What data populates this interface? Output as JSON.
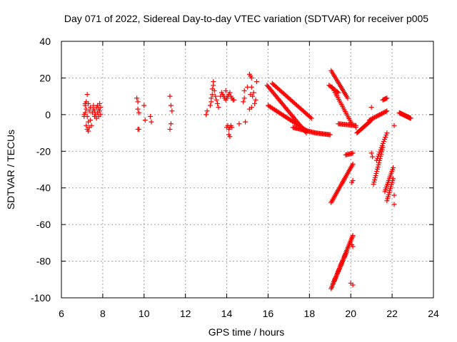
{
  "chart_data": {
    "type": "scatter",
    "title": "Day 071 of 2022, Sidereal Day-to-day VTEC variation (SDTVAR) for receiver p005",
    "xlabel": "GPS time / hours",
    "ylabel": "SDTVAR / TECUs",
    "xlim": [
      6,
      24
    ],
    "ylim": [
      -100,
      40
    ],
    "xticks": [
      6,
      8,
      10,
      12,
      14,
      16,
      18,
      20,
      22,
      24
    ],
    "yticks": [
      40,
      20,
      0,
      -20,
      -40,
      -60,
      -80,
      -100
    ],
    "grid": true,
    "marker": "+",
    "marker_color": "#ff0000",
    "series": [
      {
        "name": "SDTVAR",
        "points": [
          [
            7.15,
            1
          ],
          [
            7.15,
            5
          ],
          [
            7.2,
            7
          ],
          [
            7.2,
            3
          ],
          [
            7.25,
            11
          ],
          [
            7.25,
            -1
          ],
          [
            7.3,
            6
          ],
          [
            7.3,
            -4
          ],
          [
            7.2,
            -6
          ],
          [
            7.25,
            -8
          ],
          [
            7.3,
            -9
          ],
          [
            7.35,
            -7
          ],
          [
            7.35,
            2
          ],
          [
            7.4,
            4
          ],
          [
            7.4,
            -3
          ],
          [
            7.45,
            -6
          ],
          [
            7.1,
            0
          ],
          [
            7.1,
            -1
          ],
          [
            7.15,
            6
          ],
          [
            7.5,
            1
          ],
          [
            7.55,
            3
          ],
          [
            7.55,
            5
          ],
          [
            7.6,
            -1
          ],
          [
            7.6,
            2
          ],
          [
            7.65,
            0
          ],
          [
            7.7,
            4
          ],
          [
            7.7,
            -2
          ],
          [
            7.75,
            1
          ],
          [
            7.75,
            5
          ],
          [
            7.8,
            3
          ],
          [
            7.8,
            -1
          ],
          [
            7.85,
            2
          ],
          [
            7.85,
            6
          ],
          [
            7.9,
            0
          ],
          [
            7.9,
            4
          ],
          [
            9.65,
            9
          ],
          [
            9.7,
            7
          ],
          [
            9.7,
            3
          ],
          [
            9.75,
            1
          ],
          [
            9.7,
            -8
          ],
          [
            9.75,
            -8
          ],
          [
            10.0,
            5
          ],
          [
            10.05,
            -3
          ],
          [
            10.3,
            -1
          ],
          [
            10.35,
            -4
          ],
          [
            11.25,
            10
          ],
          [
            11.3,
            5
          ],
          [
            11.35,
            2
          ],
          [
            11.3,
            -5
          ],
          [
            11.25,
            -8
          ],
          [
            13.0,
            0
          ],
          [
            13.05,
            2
          ],
          [
            13.2,
            5
          ],
          [
            13.25,
            7
          ],
          [
            13.25,
            9
          ],
          [
            13.3,
            11
          ],
          [
            13.3,
            14
          ],
          [
            13.35,
            16
          ],
          [
            13.35,
            18
          ],
          [
            13.4,
            13
          ],
          [
            13.45,
            10
          ],
          [
            13.5,
            8
          ],
          [
            13.55,
            6
          ],
          [
            13.6,
            4
          ],
          [
            13.7,
            10
          ],
          [
            13.75,
            12
          ],
          [
            13.8,
            11
          ],
          [
            13.85,
            10
          ],
          [
            13.9,
            9
          ],
          [
            13.95,
            8
          ],
          [
            14.0,
            9
          ],
          [
            14.05,
            10
          ],
          [
            14.1,
            11
          ],
          [
            14.15,
            12
          ],
          [
            14.2,
            10
          ],
          [
            14.25,
            9
          ],
          [
            14.3,
            8
          ],
          [
            14.35,
            8
          ],
          [
            13.95,
            13
          ],
          [
            14.0,
            -7
          ],
          [
            14.05,
            -6
          ],
          [
            14.1,
            -8
          ],
          [
            14.15,
            -7
          ],
          [
            14.2,
            -6
          ],
          [
            14.25,
            -7
          ],
          [
            14.1,
            -11
          ],
          [
            14.15,
            -12
          ],
          [
            14.6,
            -5
          ],
          [
            14.8,
            7
          ],
          [
            14.85,
            9
          ],
          [
            14.85,
            13
          ],
          [
            14.9,
            -4
          ],
          [
            15.0,
            15
          ],
          [
            15.1,
            22
          ],
          [
            15.15,
            21
          ],
          [
            15.2,
            20
          ],
          [
            15.2,
            15
          ],
          [
            15.15,
            11
          ],
          [
            15.25,
            10
          ],
          [
            15.3,
            12
          ],
          [
            15.1,
            3
          ],
          [
            15.2,
            4
          ],
          [
            15.4,
            8
          ],
          [
            15.35,
            6
          ],
          [
            15.45,
            18
          ]
        ],
        "curves": [
          {
            "x_start": 15.95,
            "y_start": 16,
            "x_end": 17.85,
            "y_end": -10,
            "n": 40
          },
          {
            "x_start": 16.2,
            "y_start": 17,
            "x_end": 18.1,
            "y_end": -2,
            "n": 38
          },
          {
            "x_start": 16.0,
            "y_start": 5,
            "x_end": 17.9,
            "y_end": -9,
            "n": 38
          },
          {
            "x_start": 17.2,
            "y_start": -7,
            "x_end": 18.3,
            "y_end": -10,
            "n": 24
          },
          {
            "x_start": 18.3,
            "y_start": -10,
            "x_end": 19.0,
            "y_end": -11,
            "n": 16
          },
          {
            "x_start": 19.05,
            "y_start": 24,
            "x_end": 19.85,
            "y_end": 9,
            "n": 20
          },
          {
            "x_start": 18.95,
            "y_start": 16,
            "x_end": 19.4,
            "y_end": 12,
            "n": 10
          },
          {
            "x_start": 19.1,
            "y_start": 15,
            "x_end": 20.05,
            "y_end": -5,
            "n": 22
          },
          {
            "x_start": 19.4,
            "y_start": -5,
            "x_end": 20.25,
            "y_end": -6,
            "n": 18
          },
          {
            "x_start": 20.3,
            "y_start": -10,
            "x_end": 21.0,
            "y_end": -3,
            "n": 18
          },
          {
            "x_start": 20.9,
            "y_start": -3,
            "x_end": 21.75,
            "y_end": 2,
            "n": 18
          },
          {
            "x_start": 21.55,
            "y_start": 8,
            "x_end": 21.75,
            "y_end": 9,
            "n": 6
          },
          {
            "x_start": 22.35,
            "y_start": 1,
            "x_end": 22.9,
            "y_end": -2,
            "n": 24
          },
          {
            "x_start": 19.75,
            "y_start": -22,
            "x_end": 20.1,
            "y_end": -21,
            "n": 8
          },
          {
            "x_start": 19.05,
            "y_start": -48,
            "x_end": 20.1,
            "y_end": -27,
            "n": 30
          },
          {
            "x_start": 19.05,
            "y_start": -95,
            "x_end": 20.1,
            "y_end": -66,
            "n": 40
          },
          {
            "x_start": 19.15,
            "y_start": -92,
            "x_end": 19.8,
            "y_end": -75,
            "n": 20
          },
          {
            "x_start": 21.1,
            "y_start": -38,
            "x_end": 21.55,
            "y_end": -18,
            "n": 18
          },
          {
            "x_start": 21.25,
            "y_start": -25,
            "x_end": 21.75,
            "y_end": -10,
            "n": 14
          },
          {
            "x_start": 21.65,
            "y_start": -42,
            "x_end": 22.05,
            "y_end": -29,
            "n": 14
          },
          {
            "x_start": 21.75,
            "y_start": -47,
            "x_end": 22.05,
            "y_end": -35,
            "n": 12
          }
        ],
        "extra_points": [
          [
            20.05,
            -37
          ],
          [
            20.1,
            -36
          ],
          [
            20.05,
            -71
          ],
          [
            20.1,
            -72
          ],
          [
            20.0,
            -92
          ],
          [
            20.1,
            -93
          ],
          [
            21.0,
            -21
          ],
          [
            21.05,
            -23
          ],
          [
            21.0,
            4
          ],
          [
            22.1,
            -6
          ],
          [
            22.1,
            -44
          ],
          [
            22.1,
            -49
          ],
          [
            20.2,
            -6
          ],
          [
            20.25,
            -7
          ]
        ]
      }
    ]
  }
}
